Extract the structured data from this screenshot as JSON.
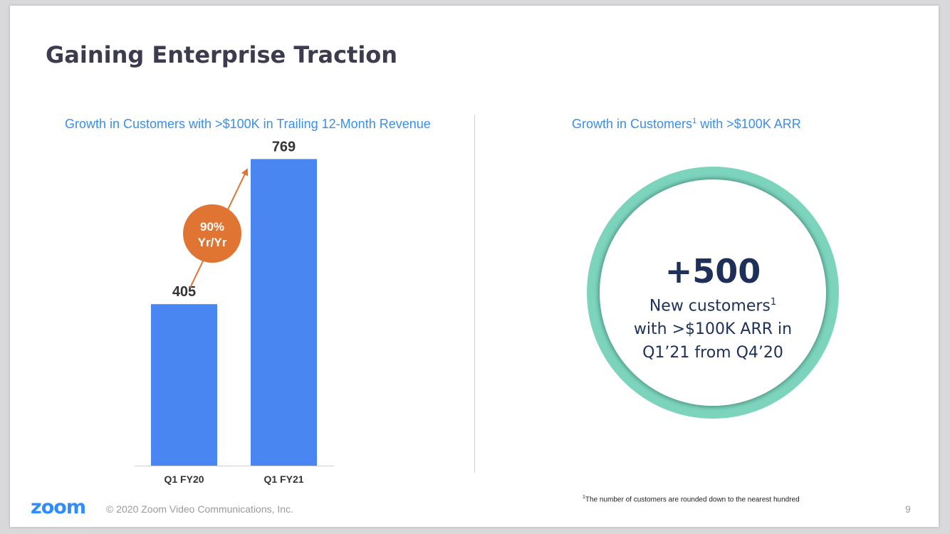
{
  "slide": {
    "title": "Gaining Enterprise Traction",
    "page_number": "9"
  },
  "left_panel": {
    "subtitle": "Growth in Customers with >$100K in Trailing 12-Month Revenue",
    "growth_badge": {
      "line1": "90%",
      "line2": "Yr/Yr",
      "color": "#e07433"
    }
  },
  "right_panel": {
    "subtitle_before": "Growth in Customers",
    "subtitle_sup": "1",
    "subtitle_after": " with >$100K ARR",
    "big_number": "+500",
    "line1": "New customers",
    "line1_sup": "1",
    "line2": "with >$100K ARR in",
    "line3": "Q1’21 from Q4’20",
    "ring_color": "#7dd4bd"
  },
  "footnote": {
    "marker": "1",
    "text": "The number of customers are rounded down to the nearest hundred"
  },
  "footer": {
    "logo": "zoom",
    "copyright": "© 2020 Zoom Video Communications, Inc."
  },
  "colors": {
    "bar": "#4a86f2",
    "title": "#3c3c4e",
    "subtitle": "#3d8ee6",
    "accent": "#e07433",
    "circle_text": "#1e2f5a"
  },
  "chart_data": {
    "type": "bar",
    "title": "Growth in Customers with >$100K in Trailing 12-Month Revenue",
    "categories": [
      "Q1 FY20",
      "Q1 FY21"
    ],
    "values": [
      405,
      769
    ],
    "data_labels": [
      "405",
      "769"
    ],
    "ylim": [
      0,
      800
    ],
    "annotation": "90% Yr/Yr",
    "grid": false,
    "legend": "none"
  }
}
